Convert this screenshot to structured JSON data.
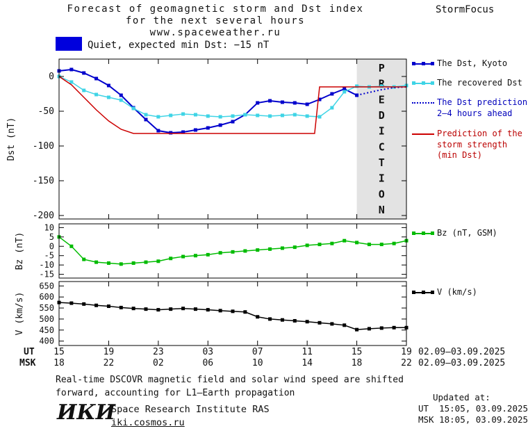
{
  "header": {
    "title_line1": "Forecast of geomagnetic storm and Dst index",
    "title_line2": "for the next several hours",
    "title_line3": "www.spaceweather.ru",
    "brand": "StormFocus"
  },
  "status": {
    "label": "Quiet, expected min Dst: −15 nT",
    "swatch_color": "#0000dd"
  },
  "legend": {
    "entries": [
      {
        "label": "The Dst, Kyoto",
        "color": "#0000cc",
        "text_color": "#111111",
        "marker": true
      },
      {
        "label": "The recovered Dst",
        "color": "#3fd4e6",
        "text_color": "#111111",
        "marker": true
      },
      {
        "label": "The Dst prediction\n2–4 hours ahead",
        "color": "#0000cc",
        "text_color": "#0000bb",
        "dash": true
      },
      {
        "label": "Prediction of the\nstorm strength\n(min Dst)",
        "color": "#cc0000",
        "text_color": "#bb0000"
      },
      {
        "label": "Bz (nT, GSM)",
        "color": "#00bb00",
        "text_color": "#111111",
        "marker": true
      },
      {
        "label": "V (km/s)",
        "color": "#000000",
        "text_color": "#111111",
        "marker": true
      }
    ]
  },
  "chart_data": [
    {
      "type": "line",
      "ylabel": "Dst (nT)",
      "xlim": [
        0,
        28
      ],
      "ylim": [
        -205,
        25
      ],
      "yticks": [
        0,
        -50,
        -100,
        -150,
        -200
      ],
      "xticks": [
        0,
        4,
        8,
        12,
        16,
        20,
        24,
        28
      ],
      "band": {
        "x0": 24,
        "x1": 28,
        "label": "PREDICTION",
        "color": "#e3e3e3",
        "label_color": "#b9b9b9"
      },
      "series": [
        {
          "name": "The Dst, Kyoto",
          "color": "#0000cc",
          "marker": true,
          "width": 2,
          "x": [
            0,
            1,
            2,
            3,
            4,
            5,
            6,
            7,
            8,
            9,
            10,
            11,
            12,
            13,
            14,
            15,
            16,
            17,
            18,
            19,
            20,
            21,
            22,
            23,
            24
          ],
          "y": [
            8,
            10,
            5,
            -3,
            -13,
            -27,
            -45,
            -62,
            -78,
            -81,
            -80,
            -77,
            -74,
            -70,
            -65,
            -55,
            -38,
            -35,
            -37,
            -38,
            -40,
            -33,
            -25,
            -18,
            -27
          ]
        },
        {
          "name": "The recovered Dst",
          "color": "#3fd4e6",
          "marker": true,
          "width": 1.5,
          "x": [
            0,
            1,
            2,
            3,
            4,
            5,
            6,
            7,
            8,
            9,
            10,
            11,
            12,
            13,
            14,
            15,
            16,
            17,
            18,
            19,
            20,
            21,
            22,
            23,
            24,
            25,
            26,
            27,
            28
          ],
          "y": [
            0,
            -8,
            -20,
            -26,
            -30,
            -34,
            -46,
            -55,
            -58,
            -56,
            -54,
            -55,
            -57,
            -58,
            -57,
            -55,
            -56,
            -57,
            -56,
            -55,
            -57,
            -58,
            -45,
            -22,
            -14,
            -15,
            -14,
            -15,
            -13
          ]
        },
        {
          "name": "The Dst prediction 2–4 hours ahead",
          "color": "#0000cc",
          "dash": true,
          "width": 2,
          "x": [
            24,
            25,
            26,
            27,
            28
          ],
          "y": [
            -27,
            -23,
            -19,
            -16,
            -15
          ]
        },
        {
          "name": "Prediction of the storm strength (min Dst)",
          "color": "#cc0000",
          "width": 1.5,
          "x": [
            0,
            1,
            2,
            3,
            4,
            5,
            6,
            20.6,
            21,
            28
          ],
          "y": [
            0,
            -12,
            -30,
            -48,
            -64,
            -76,
            -82,
            -82,
            -15,
            -15
          ]
        }
      ]
    },
    {
      "type": "line",
      "ylabel": "Bz (nT)",
      "xlim": [
        0,
        28
      ],
      "ylim": [
        -17,
        12
      ],
      "yticks": [
        10,
        5,
        0,
        -5,
        -10,
        -15
      ],
      "xticks": [
        0,
        4,
        8,
        12,
        16,
        20,
        24,
        28
      ],
      "series": [
        {
          "name": "Bz (nT, GSM)",
          "color": "#00bb00",
          "marker": true,
          "width": 1.5,
          "x": [
            0,
            1,
            2,
            3,
            4,
            5,
            6,
            7,
            8,
            9,
            10,
            11,
            12,
            13,
            14,
            15,
            16,
            17,
            18,
            19,
            20,
            21,
            22,
            23,
            24,
            25,
            26,
            27,
            28
          ],
          "y": [
            5,
            0,
            -7,
            -8.5,
            -9,
            -9.5,
            -9,
            -8.5,
            -8,
            -6.5,
            -5.5,
            -5,
            -4.5,
            -3.5,
            -3,
            -2.5,
            -2,
            -1.5,
            -1,
            -0.5,
            0.5,
            1,
            1.5,
            3,
            2,
            1,
            1,
            1.5,
            3
          ]
        }
      ]
    },
    {
      "type": "line",
      "ylabel": "V (km/s)",
      "xlim": [
        0,
        28
      ],
      "ylim": [
        380,
        670
      ],
      "yticks": [
        650,
        600,
        550,
        500,
        450,
        400
      ],
      "xticks": [
        0,
        4,
        8,
        12,
        16,
        20,
        24,
        28
      ],
      "series": [
        {
          "name": "V (km/s)",
          "color": "#000000",
          "marker": true,
          "width": 1.5,
          "x": [
            0,
            1,
            2,
            3,
            4,
            5,
            6,
            7,
            8,
            9,
            10,
            11,
            12,
            13,
            14,
            15,
            16,
            17,
            18,
            19,
            20,
            21,
            22,
            23,
            24,
            25,
            26,
            27,
            28
          ],
          "y": [
            575,
            572,
            568,
            562,
            558,
            552,
            548,
            545,
            542,
            545,
            548,
            545,
            542,
            538,
            535,
            532,
            510,
            500,
            496,
            492,
            488,
            483,
            478,
            472,
            452,
            456,
            459,
            461,
            461
          ]
        }
      ]
    }
  ],
  "x_axis": {
    "ut_label": "UT",
    "msk_label": "MSK",
    "ut_ticks": [
      "15",
      "19",
      "23",
      "03",
      "07",
      "11",
      "15",
      "19"
    ],
    "msk_ticks": [
      "18",
      "22",
      "02",
      "06",
      "10",
      "14",
      "18",
      "22"
    ],
    "ut_date": "02.09–03.09.2025",
    "msk_date": "02.09–03.09.2025"
  },
  "caption": {
    "line1": "Real-time DSCOVR magnetic field and solar wind speed are shifted",
    "line2": "forward, accounting for L1–Earth propagation"
  },
  "footer": {
    "logo": "ИКИ",
    "institute": "Space Research Institute RAS",
    "site": "iki.cosmos.ru",
    "updated_label": "Updated at:",
    "updated_ut": "UT  15:05, 03.09.2025",
    "updated_msk": "MSK 18:05, 03.09.2025"
  }
}
